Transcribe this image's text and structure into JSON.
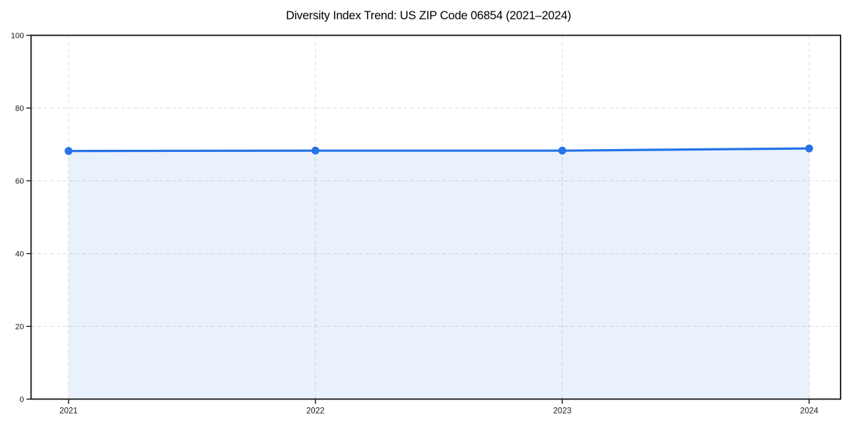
{
  "page": {
    "background": "#ffffff"
  },
  "chart_data": {
    "type": "line",
    "title": "Diversity Index Trend: US ZIP Code 06854 (2021–2024)",
    "x": [
      "2021",
      "2022",
      "2023",
      "2024"
    ],
    "series": [
      {
        "name": "Diversity Index",
        "values": [
          68.2,
          68.3,
          68.3,
          68.9
        ]
      }
    ],
    "xlabel": "",
    "ylabel": "",
    "ylim": [
      0,
      100
    ],
    "yticks": [
      0,
      20,
      40,
      60,
      80,
      100
    ],
    "legend": "none",
    "grid": {
      "visible": true,
      "style": "dashed",
      "both_axes": true,
      "color": "#dbdbdb"
    },
    "area_fill": true,
    "marker": "circle",
    "colors": {
      "line": "#2574e8",
      "marker": "#2574e8",
      "fill": "rgba(37,116,232,0.10)",
      "spine": "#141414",
      "tick_label": "#1a1a1a",
      "title": "#000000"
    }
  }
}
